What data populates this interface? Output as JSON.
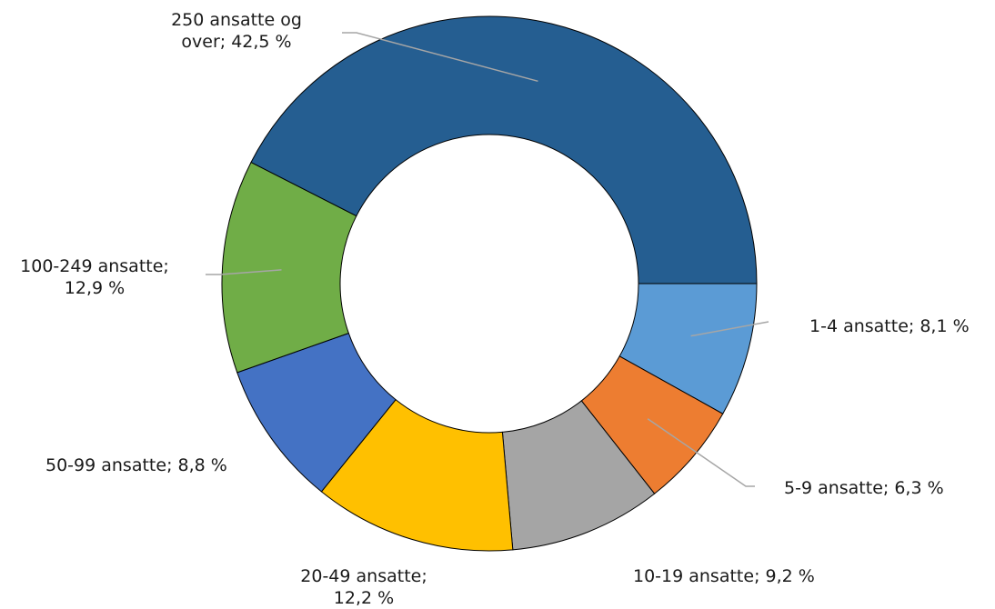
{
  "chart_data": {
    "type": "donut",
    "title": "",
    "series": [
      {
        "values": [
          {
            "category": "1-4 ansatte",
            "value": 8.1,
            "color": "#5B9BD5"
          },
          {
            "category": "5-9 ansatte",
            "value": 6.3,
            "color": "#ED7D31"
          },
          {
            "category": "10-19 ansatte",
            "value": 9.2,
            "color": "#A5A5A5"
          },
          {
            "category": "20-49 ansatte",
            "value": 12.2,
            "color": "#FFC000"
          },
          {
            "category": "50-99 ansatte",
            "value": 8.8,
            "color": "#4472C4"
          },
          {
            "category": "100-249 ansatte",
            "value": 12.9,
            "color": "#70AD47"
          },
          {
            "category": "250 ansatte og over",
            "value": 42.5,
            "color": "#255E91"
          }
        ]
      }
    ],
    "labels": [
      {
        "lines": [
          "1-4 ansatte; 8,1 %"
        ]
      },
      {
        "lines": [
          "5-9 ansatte; 6,3 %"
        ]
      },
      {
        "lines": [
          "10-19 ansatte; 9,2 %"
        ]
      },
      {
        "lines": [
          "20-49 ansatte;",
          "12,2 %"
        ]
      },
      {
        "lines": [
          "50-99 ansatte; 8,8 %"
        ]
      },
      {
        "lines": [
          "100-249 ansatte;",
          "12,9 %"
        ]
      },
      {
        "lines": [
          "250 ansatte og",
          "over; 42,5 %"
        ]
      }
    ],
    "legend": "none",
    "leader_line_color": "#A6A6A6",
    "slice_border_color": "#000000"
  }
}
